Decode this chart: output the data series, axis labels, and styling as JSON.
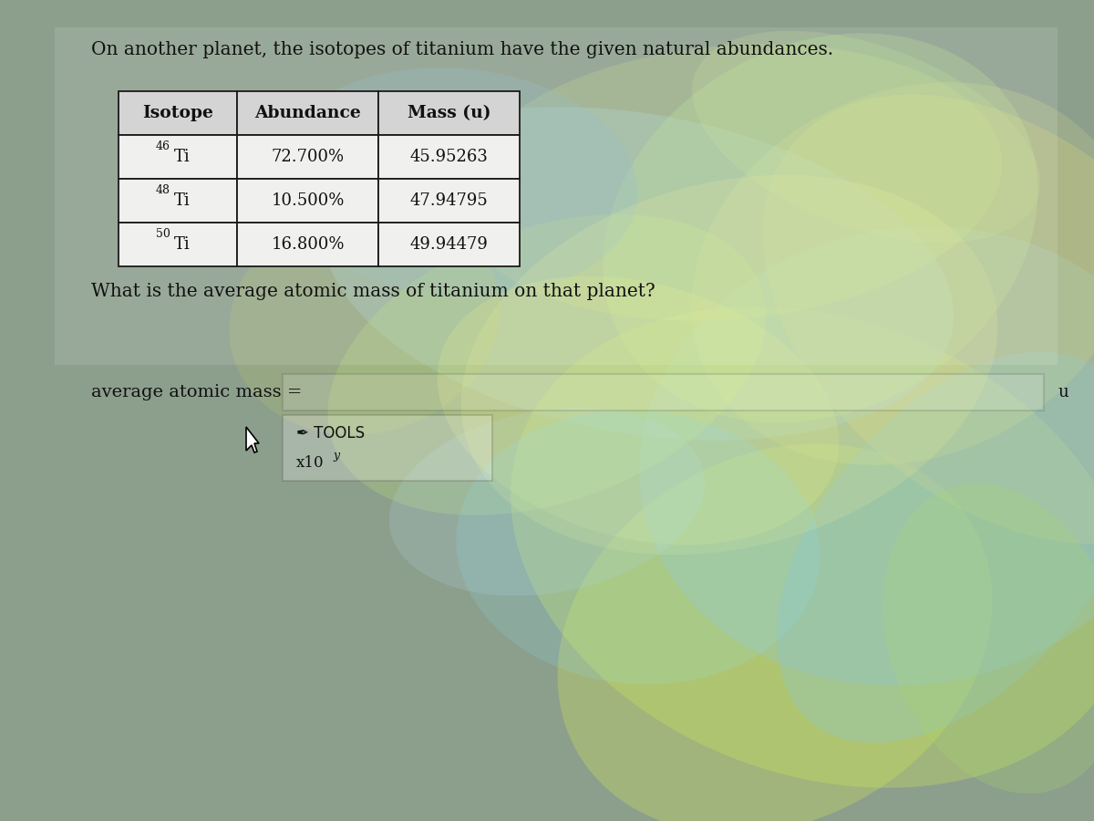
{
  "title": "On another planet, the isotopes of titanium have the given natural abundances.",
  "table_headers": [
    "Isotope",
    "Abundance",
    "Mass (u)"
  ],
  "isotopes": [
    {
      "label_super": "46",
      "label_base": "Ti",
      "abundance": "72.700%",
      "mass": "45.95263"
    },
    {
      "label_super": "48",
      "label_base": "Ti",
      "abundance": "10.500%",
      "mass": "47.94795"
    },
    {
      "label_super": "50",
      "label_base": "Ti",
      "abundance": "16.800%",
      "mass": "49.94479"
    }
  ],
  "question": "What is the average atomic mass of titanium on that planet?",
  "answer_label": "average atomic mass =",
  "answer_unit": "u",
  "tools_label": "TOOLS",
  "x10_label": "x10",
  "text_color": "#111111"
}
